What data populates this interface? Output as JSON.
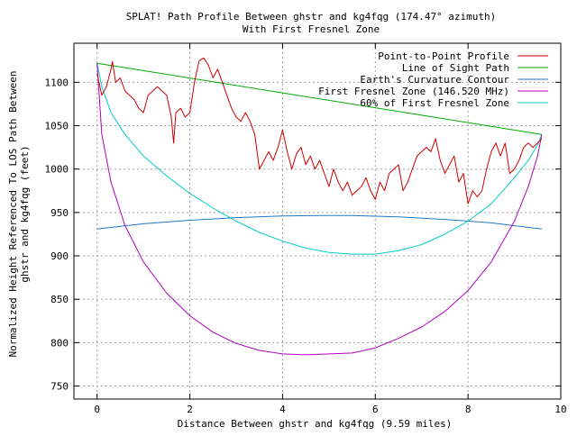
{
  "chart_data": {
    "type": "line",
    "title": "SPLAT! Path Profile Between ghstr and kg4fqg (174.47° azimuth)",
    "subtitle": "With First Fresnel Zone",
    "xlabel": "Distance Between ghstr and kg4fqg (9.59 miles)",
    "ylabel": "Normalized Height Referenced To LOS Path Between ghstr and kg4fqg (feet)",
    "xlim": [
      -0.5,
      10
    ],
    "ylim": [
      735,
      1145
    ],
    "grid": true,
    "legend_position": "top-right",
    "x_ticks": [
      {
        "value": 0,
        "label": "0"
      },
      {
        "value": 2,
        "label": "2"
      },
      {
        "value": 4,
        "label": "4"
      },
      {
        "value": 6,
        "label": "6"
      },
      {
        "value": 8,
        "label": "8"
      },
      {
        "value": 10,
        "label": "10"
      }
    ],
    "y_ticks": [
      {
        "value": 750,
        "label": "750"
      },
      {
        "value": 800,
        "label": "800"
      },
      {
        "value": 850,
        "label": "850"
      },
      {
        "value": 900,
        "label": "900"
      },
      {
        "value": 950,
        "label": "950"
      },
      {
        "value": 1000,
        "label": "1000"
      },
      {
        "value": 1050,
        "label": "1050"
      },
      {
        "value": 1100,
        "label": "1100"
      }
    ],
    "series": [
      {
        "name": "Point-to-Point Profile",
        "color": "#cc0000",
        "x": [
          0.0,
          0.1,
          0.2,
          0.3,
          0.33,
          0.4,
          0.5,
          0.6,
          0.7,
          0.8,
          0.9,
          1.0,
          1.1,
          1.2,
          1.3,
          1.4,
          1.5,
          1.6,
          1.65,
          1.7,
          1.8,
          1.9,
          2.0,
          2.1,
          2.2,
          2.3,
          2.4,
          2.5,
          2.6,
          2.7,
          2.8,
          2.9,
          3.0,
          3.1,
          3.2,
          3.3,
          3.4,
          3.5,
          3.6,
          3.7,
          3.8,
          3.9,
          4.0,
          4.1,
          4.2,
          4.3,
          4.4,
          4.5,
          4.6,
          4.7,
          4.8,
          4.9,
          5.0,
          5.1,
          5.2,
          5.3,
          5.4,
          5.5,
          5.6,
          5.7,
          5.8,
          5.9,
          6.0,
          6.1,
          6.2,
          6.3,
          6.4,
          6.5,
          6.6,
          6.7,
          6.8,
          6.9,
          7.0,
          7.1,
          7.2,
          7.3,
          7.4,
          7.5,
          7.6,
          7.7,
          7.8,
          7.9,
          8.0,
          8.1,
          8.2,
          8.3,
          8.4,
          8.5,
          8.6,
          8.7,
          8.8,
          8.9,
          9.0,
          9.1,
          9.2,
          9.3,
          9.4,
          9.5,
          9.59
        ],
        "y": [
          1110,
          1085,
          1095,
          1115,
          1124,
          1100,
          1105,
          1090,
          1085,
          1080,
          1070,
          1065,
          1085,
          1090,
          1095,
          1090,
          1085,
          1060,
          1030,
          1065,
          1070,
          1060,
          1065,
          1100,
          1125,
          1128,
          1120,
          1105,
          1115,
          1100,
          1085,
          1070,
          1060,
          1055,
          1065,
          1055,
          1040,
          1000,
          1010,
          1020,
          1010,
          1025,
          1045,
          1020,
          1000,
          1018,
          1025,
          1005,
          1015,
          1000,
          1010,
          995,
          980,
          1000,
          985,
          975,
          985,
          970,
          975,
          980,
          990,
          975,
          965,
          985,
          975,
          995,
          1000,
          1005,
          975,
          985,
          1000,
          1015,
          1020,
          1025,
          1020,
          1035,
          1010,
          995,
          1005,
          1015,
          985,
          995,
          960,
          975,
          968,
          975,
          1000,
          1020,
          1030,
          1015,
          1030,
          995,
          1000,
          1010,
          1025,
          1030,
          1025,
          1030,
          1035
        ]
      },
      {
        "name": "Line of Sight Path",
        "color": "#00aa00",
        "x": [
          0.0,
          9.59
        ],
        "y": [
          1122,
          1040
        ]
      },
      {
        "name": "Earth's Curvature Contour",
        "color": "#1f77c4",
        "x": [
          0.0,
          1.0,
          2.0,
          3.0,
          4.0,
          4.8,
          5.5,
          6.5,
          7.5,
          8.5,
          9.59
        ],
        "y": [
          931,
          937,
          941,
          944,
          946,
          946.5,
          946.5,
          945,
          942,
          938,
          931
        ]
      },
      {
        "name": "First Fresnel Zone (146.520 MHz)",
        "color": "#b000c0",
        "x": [
          0.0,
          0.1,
          0.3,
          0.6,
          1.0,
          1.5,
          2.0,
          2.5,
          3.0,
          3.5,
          4.0,
          4.5,
          5.0,
          5.5,
          6.0,
          6.5,
          7.0,
          7.5,
          8.0,
          8.5,
          9.0,
          9.3,
          9.5,
          9.59
        ],
        "y": [
          1122,
          1040,
          985,
          935,
          893,
          857,
          831,
          812,
          799,
          791,
          787,
          786,
          787,
          788,
          794,
          805,
          818,
          836,
          860,
          893,
          940,
          980,
          1015,
          1040
        ]
      },
      {
        "name": "60% of First Fresnel Zone",
        "color": "#00cccc",
        "x": [
          0.0,
          0.1,
          0.3,
          0.6,
          1.0,
          1.5,
          2.0,
          2.5,
          3.0,
          3.5,
          4.0,
          4.5,
          5.0,
          5.5,
          6.0,
          6.5,
          7.0,
          7.5,
          8.0,
          8.5,
          9.0,
          9.3,
          9.5,
          9.59
        ],
        "y": [
          1122,
          1095,
          1065,
          1040,
          1015,
          992,
          972,
          955,
          940,
          927,
          917,
          909,
          904,
          902,
          902,
          906,
          913,
          925,
          940,
          960,
          990,
          1010,
          1028,
          1040
        ]
      }
    ]
  }
}
